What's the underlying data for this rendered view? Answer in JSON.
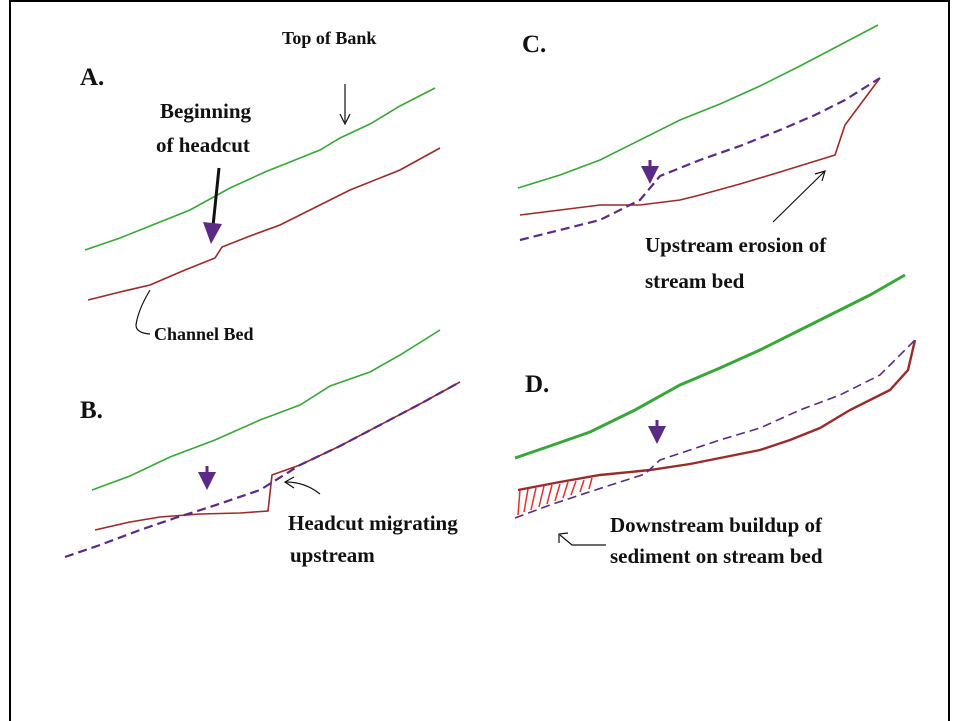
{
  "panels": [
    {
      "label": "A.",
      "annotations": [
        {
          "lines": [
            "Top of Bank"
          ]
        },
        {
          "lines": [
            "Beginning",
            "of headcut"
          ]
        },
        {
          "lines": [
            "Channel Bed"
          ]
        }
      ]
    },
    {
      "label": "B.",
      "annotations": [
        {
          "lines": [
            "Headcut migrating",
            "upstream"
          ]
        }
      ]
    },
    {
      "label": "C.",
      "annotations": [
        {
          "lines": [
            "Upstream erosion of",
            "stream bed"
          ]
        }
      ]
    },
    {
      "label": "D.",
      "annotations": [
        {
          "lines": [
            "Downstream buildup of",
            "sediment on stream bed"
          ]
        }
      ]
    }
  ]
}
